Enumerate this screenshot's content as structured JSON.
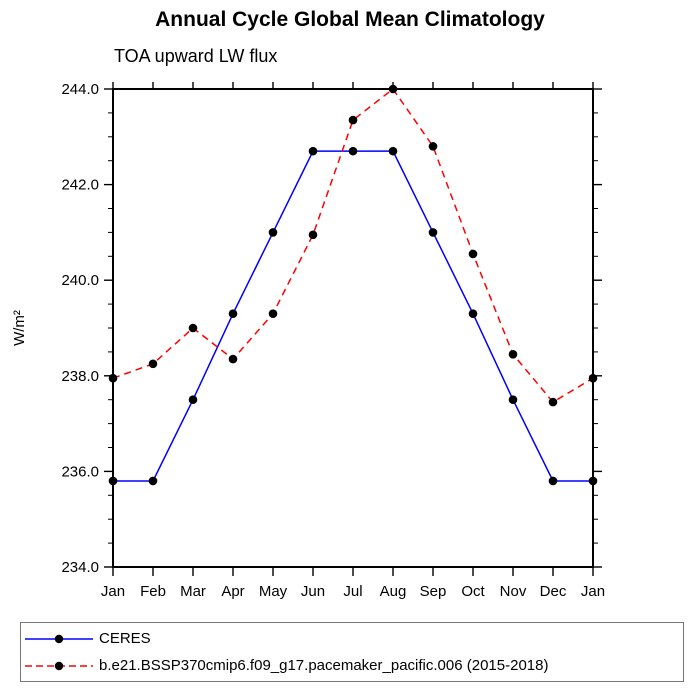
{
  "chart_data": {
    "type": "line",
    "title": "Annual Cycle Global Mean Climatology",
    "subtitle": "TOA upward LW flux",
    "ylabel": "W/m²",
    "categories": [
      "Jan",
      "Feb",
      "Mar",
      "Apr",
      "May",
      "Jun",
      "Jul",
      "Aug",
      "Sep",
      "Oct",
      "Nov",
      "Dec",
      "Jan"
    ],
    "series": [
      {
        "name": "CERES",
        "color": "#0000ff",
        "line_style": "solid",
        "marker": "filled-circle",
        "marker_color": "#000000",
        "values": [
          235.8,
          235.8,
          237.5,
          239.3,
          241.0,
          242.7,
          242.7,
          242.7,
          241.0,
          239.3,
          237.5,
          235.8,
          235.8
        ]
      },
      {
        "name": "b.e21.BSSP370cmip6.f09_g17.pacemaker_pacific.006 (2015-2018)",
        "color": "#ff0000",
        "line_style": "dashed",
        "marker": "filled-circle",
        "marker_color": "#000000",
        "values": [
          237.95,
          238.25,
          239.0,
          238.35,
          239.3,
          240.95,
          243.35,
          244.0,
          242.8,
          240.55,
          238.45,
          237.45,
          237.95
        ]
      }
    ],
    "ylim": [
      234.0,
      244.0
    ],
    "ytick_major_step": 2.0,
    "ytick_minor_step": 0.5,
    "ytick_labels": [
      "234.0",
      "236.0",
      "238.0",
      "240.0",
      "242.0",
      "244.0"
    ],
    "grid": false,
    "legend_position": "bottom",
    "axis_color": "#000000",
    "background_color": "#ffffff"
  }
}
